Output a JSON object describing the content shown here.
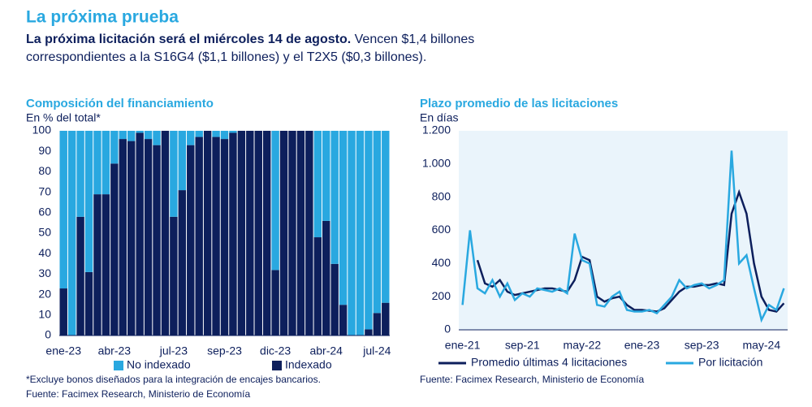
{
  "title": "La próxima prueba",
  "subtitle_bold": "La próxima licitación será el miércoles 14 de agosto.",
  "subtitle_lines": [
    "Vencen $1,4 billones",
    "correspondientes a la S16G4 ($1,1 billones) y el T2X5 ($0,3 billones)."
  ],
  "chart_data": [
    {
      "type": "stacked_bar",
      "title": "Composición del financiamiento",
      "ylabel": "En % del total*",
      "categories": [
        "ene-23",
        null,
        null,
        null,
        null,
        null,
        "abr-23",
        null,
        null,
        null,
        null,
        null,
        null,
        "jul-23",
        null,
        null,
        null,
        null,
        null,
        "sep-23",
        null,
        null,
        null,
        null,
        null,
        "dic-23",
        null,
        null,
        null,
        null,
        null,
        "abr-24",
        null,
        null,
        null,
        null,
        null,
        "jul-24",
        null
      ],
      "series": [
        {
          "name": "No indexado",
          "color": "#29a8e0",
          "values": [
            77,
            100,
            42,
            69,
            31,
            31,
            16,
            4,
            5,
            1,
            4,
            7,
            0,
            42,
            29,
            7,
            3,
            0,
            3,
            4,
            1,
            0,
            0,
            0,
            0,
            68,
            0,
            0,
            0,
            0,
            52,
            44,
            65,
            85,
            100,
            100,
            97,
            89,
            84
          ]
        },
        {
          "name": "Indexado",
          "color": "#0d1f5c",
          "values": [
            23,
            0,
            58,
            31,
            69,
            69,
            84,
            96,
            95,
            99,
            96,
            93,
            100,
            58,
            71,
            93,
            97,
            100,
            97,
            96,
            99,
            100,
            100,
            100,
            100,
            32,
            100,
            100,
            100,
            100,
            48,
            56,
            35,
            15,
            0,
            0,
            3,
            11,
            16
          ]
        }
      ],
      "ylim": [
        0,
        100
      ],
      "yticks": [
        0,
        10,
        20,
        30,
        40,
        50,
        60,
        70,
        80,
        90,
        100
      ],
      "note": "*Excluye bonos diseñados para la integración de encajes bancarios.",
      "source": "Fuente: Facimex Research, Ministerio de Economía"
    },
    {
      "type": "line",
      "title": "Plazo promedio de las licitaciones",
      "ylabel": "En días",
      "categories": [
        "ene-21",
        null,
        null,
        null,
        null,
        null,
        null,
        null,
        "sep-21",
        null,
        null,
        null,
        null,
        null,
        null,
        null,
        "may-22",
        null,
        null,
        null,
        null,
        null,
        null,
        null,
        "ene-23",
        null,
        null,
        null,
        null,
        null,
        null,
        null,
        "sep-23",
        null,
        null,
        null,
        null,
        null,
        null,
        null,
        "may-24",
        null,
        null,
        null
      ],
      "series": [
        {
          "name": "Promedio últimas 4 licitaciones",
          "color": "#0d1f5c",
          "values": [
            null,
            null,
            420,
            280,
            260,
            300,
            230,
            210,
            220,
            230,
            240,
            250,
            250,
            240,
            230,
            300,
            440,
            420,
            200,
            170,
            190,
            200,
            150,
            120,
            120,
            115,
            110,
            130,
            180,
            230,
            260,
            260,
            270,
            270,
            280,
            270,
            700,
            830,
            700,
            400,
            200,
            120,
            110,
            160
          ]
        },
        {
          "name": "Por licitación",
          "color": "#29a8e0",
          "values": [
            150,
            600,
            250,
            220,
            300,
            200,
            280,
            180,
            220,
            200,
            250,
            240,
            230,
            250,
            220,
            580,
            420,
            400,
            150,
            140,
            200,
            230,
            120,
            110,
            110,
            120,
            100,
            150,
            200,
            300,
            250,
            270,
            280,
            250,
            270,
            300,
            1080,
            400,
            450,
            250,
            60,
            150,
            120,
            250
          ]
        }
      ],
      "ylim": [
        0,
        1200
      ],
      "yticks": [
        0,
        200,
        400,
        600,
        800,
        {
          "value": 1000,
          "label": "1.000"
        },
        {
          "value": 1200,
          "label": "1.200"
        }
      ],
      "source": "Fuente: Facimex Research, Ministerio de Economía"
    }
  ]
}
